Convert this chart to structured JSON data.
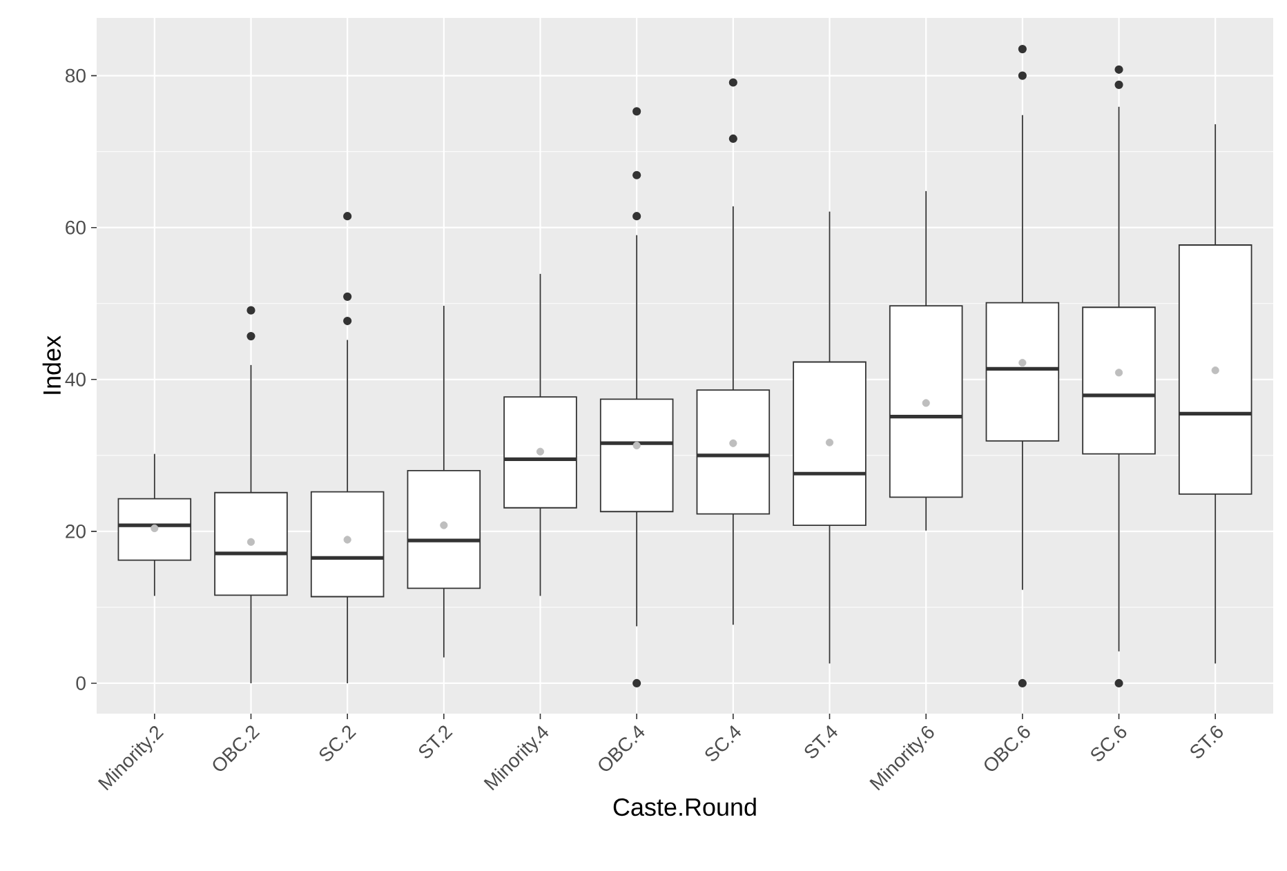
{
  "chart_data": {
    "type": "box",
    "xlabel": "Caste.Round",
    "ylabel": "Index",
    "categories": [
      "Minority.2",
      "OBC.2",
      "SC.2",
      "ST.2",
      "Minority.4",
      "OBC.4",
      "SC.4",
      "ST.4",
      "Minority.6",
      "OBC.6",
      "SC.6",
      "ST.6"
    ],
    "boxes": [
      {
        "low": 11.5,
        "q1": 16.2,
        "median": 20.8,
        "q3": 24.3,
        "high": 30.2,
        "mean": 20.4
      },
      {
        "low": 0,
        "q1": 11.6,
        "median": 17.1,
        "q3": 25.1,
        "high": 41.9,
        "mean": 18.6,
        "outliers": [
          49.1,
          45.7
        ]
      },
      {
        "low": 0,
        "q1": 11.4,
        "median": 16.5,
        "q3": 25.2,
        "high": 45.2,
        "mean": 18.9,
        "outliers": [
          61.5,
          50.9,
          47.7
        ]
      },
      {
        "low": 3.4,
        "q1": 12.5,
        "median": 18.8,
        "q3": 28.0,
        "high": 49.7,
        "mean": 20.8
      },
      {
        "low": 11.5,
        "q1": 23.1,
        "median": 29.5,
        "q3": 37.7,
        "high": 53.9,
        "mean": 30.5
      },
      {
        "low": 7.5,
        "q1": 22.6,
        "median": 31.6,
        "q3": 37.4,
        "high": 59.0,
        "mean": 31.3,
        "outliers": [
          75.3,
          66.9,
          61.5,
          0
        ]
      },
      {
        "low": 7.7,
        "q1": 22.3,
        "median": 30.0,
        "q3": 38.6,
        "high": 62.8,
        "mean": 31.6,
        "outliers": [
          79.1,
          71.7
        ]
      },
      {
        "low": 2.6,
        "q1": 20.8,
        "median": 27.6,
        "q3": 42.3,
        "high": 62.1,
        "mean": 31.7
      },
      {
        "low": 20.1,
        "q1": 24.5,
        "median": 35.1,
        "q3": 49.7,
        "high": 64.8,
        "mean": 36.9
      },
      {
        "low": 12.3,
        "q1": 31.9,
        "median": 41.4,
        "q3": 50.1,
        "high": 74.8,
        "mean": 42.2,
        "outliers": [
          83.5,
          80.0,
          0
        ]
      },
      {
        "low": 4.2,
        "q1": 30.2,
        "median": 37.9,
        "q3": 49.5,
        "high": 75.9,
        "mean": 40.9,
        "outliers": [
          80.8,
          78.8,
          0
        ]
      },
      {
        "low": 2.6,
        "q1": 24.9,
        "median": 35.5,
        "q3": 57.7,
        "high": 73.6,
        "mean": 41.2
      }
    ],
    "ylim": [
      -4,
      87.6
    ],
    "yticks": [
      0,
      20,
      40,
      60,
      80
    ],
    "grid": true
  }
}
